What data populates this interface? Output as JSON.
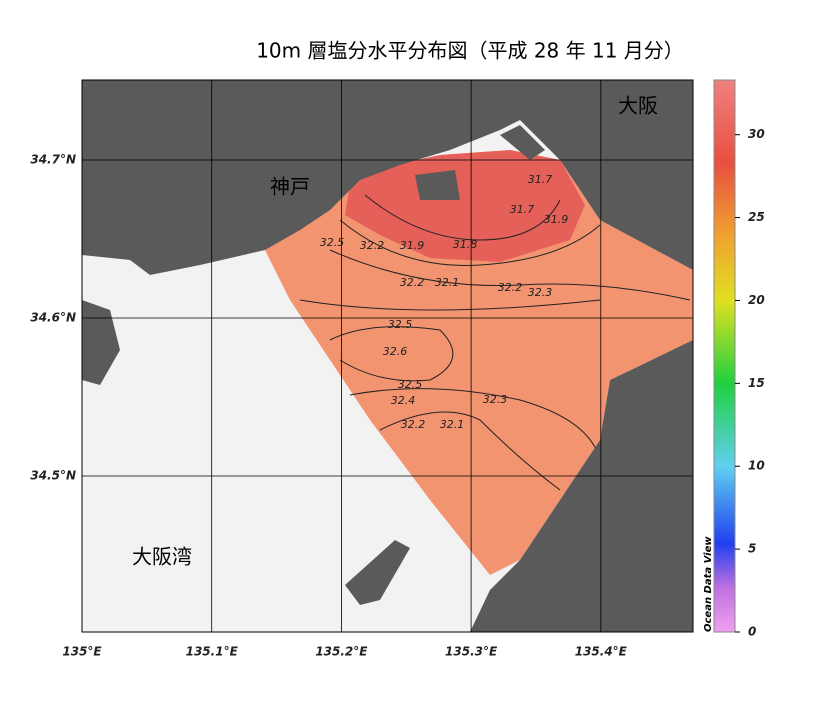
{
  "map": {
    "title": "10m 層塩分水平分布図（平成 28 年 11 月分）",
    "places": [
      "神戸",
      "大阪",
      "大阪湾"
    ],
    "lon_ticks": [
      {
        "value": 135.0,
        "label": "135°E"
      },
      {
        "value": 135.1,
        "label": "135.1°E"
      },
      {
        "value": 135.2,
        "label": "135.2°E"
      },
      {
        "value": 135.3,
        "label": "135.3°E"
      },
      {
        "value": 135.4,
        "label": "135.4°E"
      }
    ],
    "lat_ticks": [
      {
        "value": 34.7,
        "label": "34.7°N"
      },
      {
        "value": 34.6,
        "label": "34.6°N"
      },
      {
        "value": 34.5,
        "label": "34.5°N"
      }
    ],
    "colorbar": {
      "range": [
        0,
        33.3
      ],
      "ticks": [
        0,
        5,
        10,
        15,
        20,
        25,
        30
      ],
      "credit": "Ocean Data View"
    },
    "contour_labels": [
      "31.7",
      "31.8",
      "31.9",
      "32.5",
      "32.2",
      "32.1",
      "32.2",
      "32.2",
      "32.3",
      "32.5",
      "32.6",
      "32.5",
      "32.4",
      "32.2",
      "32.1",
      "32.3",
      "31.9",
      "31.7"
    ]
  }
}
